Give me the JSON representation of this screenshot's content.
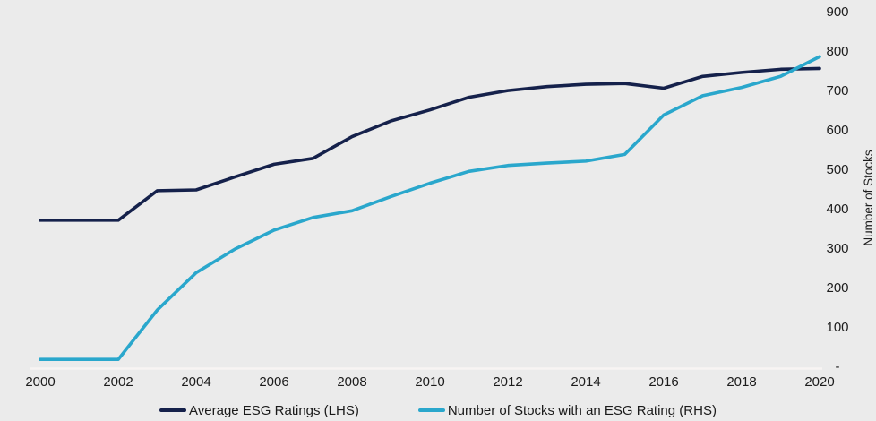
{
  "chart_data": {
    "type": "line",
    "title": "",
    "x": [
      2000,
      2001,
      2002,
      2003,
      2004,
      2005,
      2006,
      2007,
      2008,
      2009,
      2010,
      2011,
      2012,
      2013,
      2014,
      2015,
      2016,
      2017,
      2018,
      2019,
      2020
    ],
    "x_tick_labels": [
      "2000",
      "2002",
      "2004",
      "2006",
      "2008",
      "2010",
      "2012",
      "2014",
      "2016",
      "2018",
      "2020"
    ],
    "y_right": {
      "label": "Number of Stocks",
      "range": [
        0,
        900
      ],
      "ticks": [
        {
          "label": "900",
          "value": 900
        },
        {
          "label": "800",
          "value": 800
        },
        {
          "label": "700",
          "value": 700
        },
        {
          "label": "600",
          "value": 600
        },
        {
          "label": "500",
          "value": 500
        },
        {
          "label": "400",
          "value": 400
        },
        {
          "label": "300",
          "value": 300
        },
        {
          "label": "200",
          "value": 200
        },
        {
          "label": "100",
          "value": 100
        },
        {
          "label": "-",
          "value": 0
        }
      ]
    },
    "grid": false,
    "legend_position": "bottom",
    "series": [
      {
        "name": "Average ESG Ratings (LHS)",
        "axis": "LHS",
        "color": "#15214b",
        "values": [
          373,
          373,
          373,
          448,
          450,
          483,
          515,
          530,
          585,
          625,
          653,
          685,
          702,
          712,
          718,
          720,
          708,
          738,
          748,
          756,
          758
        ]
      },
      {
        "name": "Number of Stocks with an ESG Rating (RHS)",
        "axis": "RHS",
        "color": "#2aa7cc",
        "values": [
          20,
          20,
          20,
          145,
          240,
          300,
          348,
          380,
          397,
          433,
          467,
          497,
          512,
          518,
          523,
          540,
          640,
          689,
          710,
          738,
          788
        ]
      }
    ]
  },
  "colors": {
    "background": "#ebebeb",
    "axis_line": "#f8f4f3",
    "text": "#1c1c1c"
  }
}
